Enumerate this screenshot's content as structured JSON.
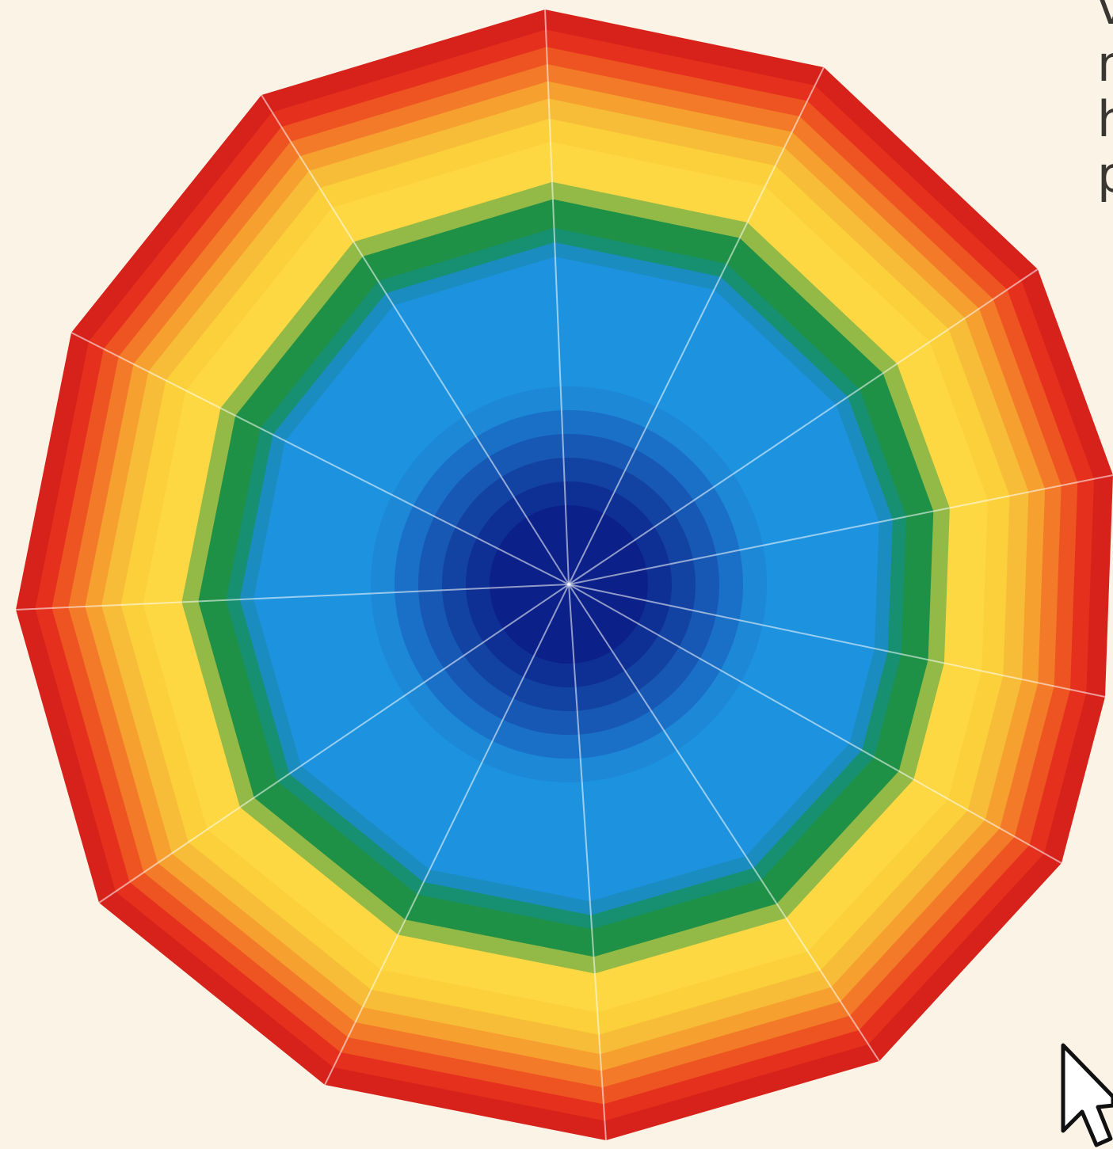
{
  "text_fragments": [
    "v",
    "m",
    "h",
    "p"
  ]
}
